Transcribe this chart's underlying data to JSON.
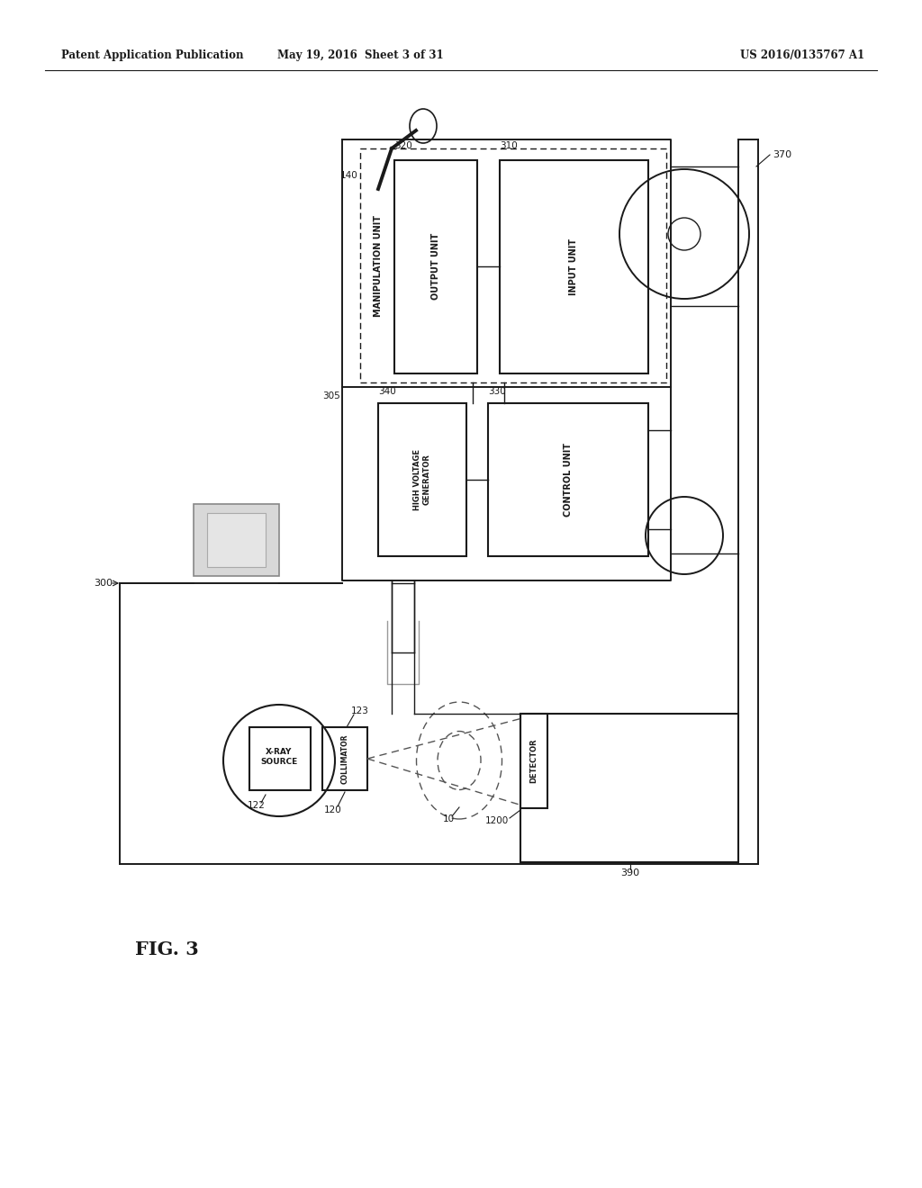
{
  "title_left": "Patent Application Publication",
  "title_mid": "May 19, 2016  Sheet 3 of 31",
  "title_right": "US 2016/0135767 A1",
  "fig_label": "FIG. 3",
  "bg_color": "#ffffff",
  "line_color": "#1a1a1a",
  "dashed_color": "#444444"
}
